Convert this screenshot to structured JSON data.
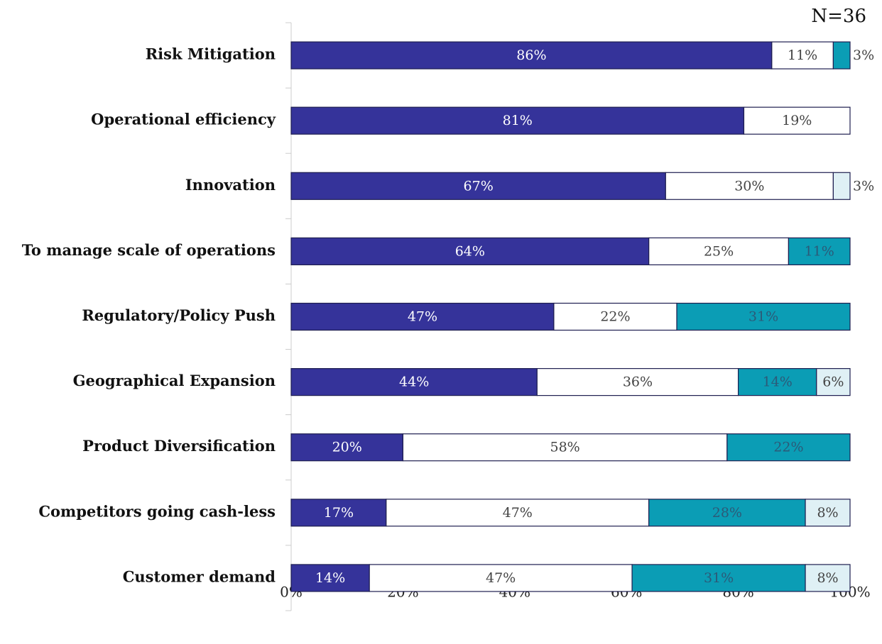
{
  "chart_data": {
    "type": "stacked_barh",
    "annotation": "N=36",
    "categories": [
      "Risk Mitigation",
      "Operational efficiency",
      "Innovation",
      "To manage scale of operations",
      "Regulatory/Policy Push",
      "Geographical Expansion",
      "Product Diversification",
      "Competitors going cash-less",
      "Customer demand"
    ],
    "series": [
      {
        "color": "#35339a",
        "label_color": "#ffffff",
        "values": [
          86,
          81,
          67,
          64,
          47,
          44,
          20,
          17,
          14
        ],
        "value_labels": [
          "86%",
          "81%",
          "67%",
          "64%",
          "47%",
          "44%",
          "20%",
          "17%",
          "14%"
        ]
      },
      {
        "color": "#ffffff",
        "label_color": "#444444",
        "values": [
          11,
          19,
          30,
          25,
          22,
          36,
          58,
          47,
          47
        ],
        "value_labels": [
          "11%",
          "19%",
          "30%",
          "25%",
          "22%",
          "36%",
          "58%",
          "47%",
          "47%"
        ]
      },
      {
        "color": "#0b9db5",
        "label_color": "#2c5a78",
        "values": [
          3,
          0,
          0,
          11,
          31,
          14,
          22,
          28,
          31
        ],
        "value_labels": [
          "3%",
          null,
          null,
          "11%",
          "31%",
          "14%",
          "22%",
          "28%",
          "31%"
        ]
      },
      {
        "color": "#dff0f5",
        "label_color": "#444444",
        "values": [
          0,
          0,
          3,
          0,
          0,
          6,
          0,
          8,
          8
        ],
        "value_labels": [
          null,
          null,
          "3%",
          null,
          null,
          "6%",
          null,
          "8%",
          "8%"
        ]
      }
    ],
    "xlim": [
      0,
      100
    ],
    "xticks": [
      {
        "value": 0,
        "label": "0%"
      },
      {
        "value": 20,
        "label": "20%"
      },
      {
        "value": 40,
        "label": "40%"
      },
      {
        "value": 60,
        "label": "60%"
      },
      {
        "value": 80,
        "label": "80%"
      },
      {
        "value": 100,
        "label": "100%"
      }
    ]
  }
}
